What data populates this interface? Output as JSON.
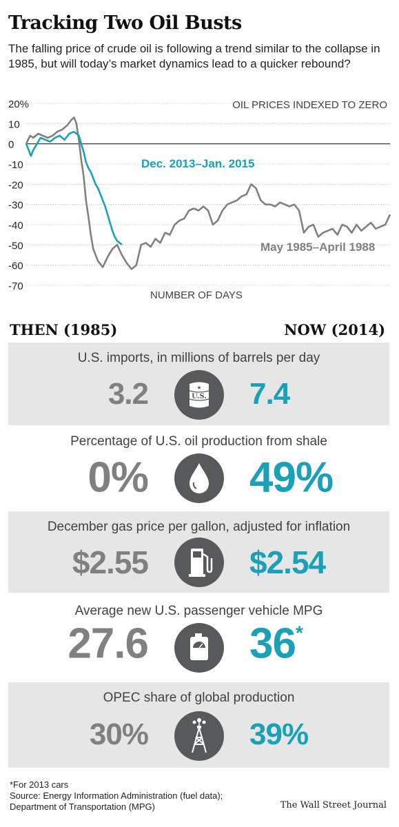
{
  "title": "Tracking Two Oil Busts",
  "subtitle": "The falling price of crude oil is following a trend similar to the collapse in 1985, but will today’s market dynamics lead to a quicker rebound?",
  "chart_data": {
    "type": "line",
    "title": "OIL PRICES INDEXED TO ZERO",
    "xlabel": "NUMBER OF DAYS",
    "ylabel": "",
    "ylim": [
      -70,
      20
    ],
    "xlim": [
      0,
      760
    ],
    "yticks": [
      "20%",
      "10",
      "0",
      "-10",
      "-20",
      "-30",
      "-40",
      "-50",
      "-60",
      "-70"
    ],
    "grid": true,
    "series": [
      {
        "name": "May 1985–April 1988",
        "color": "#808080",
        "x": [
          0,
          8,
          15,
          25,
          35,
          45,
          55,
          65,
          75,
          85,
          95,
          100,
          105,
          110,
          115,
          120,
          125,
          130,
          135,
          140,
          150,
          160,
          170,
          180,
          190,
          200,
          210,
          220,
          230,
          240,
          250,
          260,
          270,
          280,
          290,
          300,
          310,
          320,
          330,
          340,
          350,
          360,
          370,
          380,
          390,
          400,
          410,
          420,
          430,
          440,
          450,
          460,
          470,
          480,
          490,
          500,
          510,
          520,
          530,
          540,
          550,
          560,
          570,
          580,
          590,
          600,
          610,
          620,
          630,
          640,
          650,
          660,
          670,
          680,
          690,
          700,
          710,
          720,
          730,
          740,
          750,
          760
        ],
        "y": [
          0,
          4,
          3,
          5,
          4,
          3,
          4,
          6,
          7,
          9,
          12,
          13,
          10,
          2,
          -8,
          -16,
          -28,
          -36,
          -45,
          -52,
          -58,
          -61,
          -56,
          -52,
          -50,
          -55,
          -59,
          -62,
          -60,
          -50,
          -49,
          -51,
          -47,
          -49,
          -44,
          -45,
          -40,
          -38,
          -37,
          -33,
          -32,
          -33,
          -31,
          -33,
          -40,
          -38,
          -33,
          -30,
          -29,
          -28,
          -26,
          -25,
          -20,
          -22,
          -28,
          -30,
          -30,
          -31,
          -29,
          -30,
          -31,
          -30,
          -33,
          -44,
          -41,
          -40,
          -46,
          -44,
          -43,
          -42,
          -45,
          -40,
          -41,
          -44,
          -40,
          -43,
          -41,
          -39,
          -42,
          -41,
          -40,
          -35
        ]
      },
      {
        "name": "Dec. 2013–Jan. 2015",
        "color": "#1aa0b7",
        "x": [
          0,
          5,
          10,
          15,
          20,
          25,
          30,
          40,
          50,
          60,
          70,
          80,
          90,
          100,
          110,
          115,
          120,
          125,
          130,
          135,
          140,
          145,
          150,
          155,
          160,
          165,
          170,
          175,
          180,
          185,
          190,
          195,
          200
        ],
        "y": [
          0,
          -3,
          -6,
          -3,
          -1,
          1,
          3,
          2,
          1,
          3,
          4,
          2,
          5,
          6,
          4,
          0,
          -4,
          -9,
          -12,
          -14,
          -17,
          -20,
          -22,
          -25,
          -28,
          -31,
          -35,
          -39,
          -43,
          -46,
          -48,
          -49,
          -50
        ]
      }
    ]
  },
  "panels": {
    "then_label": "THEN (1985)",
    "now_label": "NOW (2014)",
    "items": [
      {
        "label": "U.S. imports, in millions of barrels per day",
        "then": "3.2",
        "now": "7.4",
        "icon": "oil-barrel-icon",
        "barrel_text": "U.S."
      },
      {
        "label": "Percentage of U.S. oil production from shale",
        "then": "0%",
        "now": "49%",
        "icon": "oil-drop-icon"
      },
      {
        "label": "December gas price per gallon, adjusted for inflation",
        "then": "$2.55",
        "now": "$2.54",
        "icon": "gas-pump-icon"
      },
      {
        "label": "Average new U.S. passenger vehicle MPG",
        "then": "27.6",
        "now": "36",
        "now_mark": "*",
        "icon": "fuel-can-icon"
      },
      {
        "label": "OPEC share of global production",
        "then": "30%",
        "now": "39%",
        "icon": "oil-derrick-icon"
      }
    ]
  },
  "footnote": {
    "line1": "*For 2013 cars",
    "line2": "Source: Energy Information Administration (fuel data);",
    "line3": "Department of Transportation (MPG)"
  },
  "credit": "The Wall Street Journal",
  "colors": {
    "then": "#808080",
    "now": "#1aa0b7",
    "panel": "#e6e6e6",
    "icon_circle": "#58595b"
  }
}
